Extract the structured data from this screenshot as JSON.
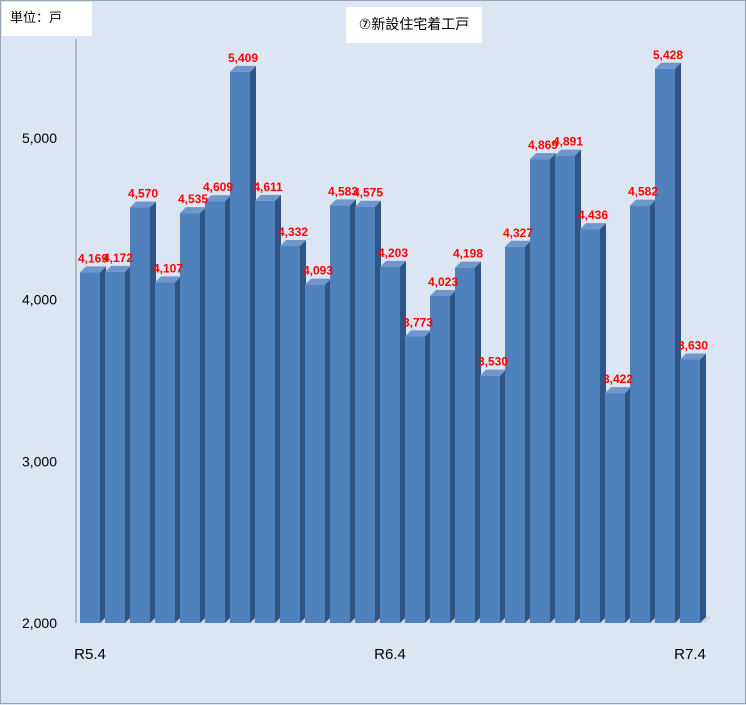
{
  "unit_label": "単位：戸",
  "chart_title": "⑦新設住宅着工戸",
  "colors": {
    "bar_front": "#4f81bd",
    "bar_side": "#2f5586",
    "bar_top": "#6f97cc",
    "label": "#ff0000",
    "background": "#dce6f2"
  },
  "chart_data": {
    "type": "bar",
    "title": "⑦新設住宅着工戸",
    "unit": "単位：戸",
    "ylim": [
      2000,
      5600
    ],
    "y_ticks": [
      {
        "value": 2000,
        "label": "2,000"
      },
      {
        "value": 3000,
        "label": "3,000"
      },
      {
        "value": 4000,
        "label": "4,000"
      },
      {
        "value": 5000,
        "label": "5,000"
      }
    ],
    "x_ticks": [
      {
        "index": 0,
        "label": "R5.4"
      },
      {
        "index": 12,
        "label": "R6.4"
      },
      {
        "index": 24,
        "label": "R7.4"
      }
    ],
    "values": [
      4169,
      4172,
      4570,
      4107,
      4535,
      4609,
      5409,
      4611,
      4332,
      4093,
      4583,
      4575,
      4203,
      3773,
      4023,
      4198,
      3530,
      4327,
      4869,
      4891,
      4436,
      3422,
      4582,
      5428,
      3630
    ],
    "value_labels": [
      "4,169",
      "4,172",
      "4,570",
      "4,107",
      "4,535",
      "4,609",
      "5,409",
      "4,611",
      "4,332",
      "4,093",
      "4,583",
      "4,575",
      "4,203",
      "3,773",
      "4,023",
      "4,198",
      "3,530",
      "4,327",
      "4,869",
      "4,891",
      "4,436",
      "3,422",
      "4,582",
      "5,428",
      "3,630"
    ],
    "grid": false,
    "legend": "none"
  }
}
